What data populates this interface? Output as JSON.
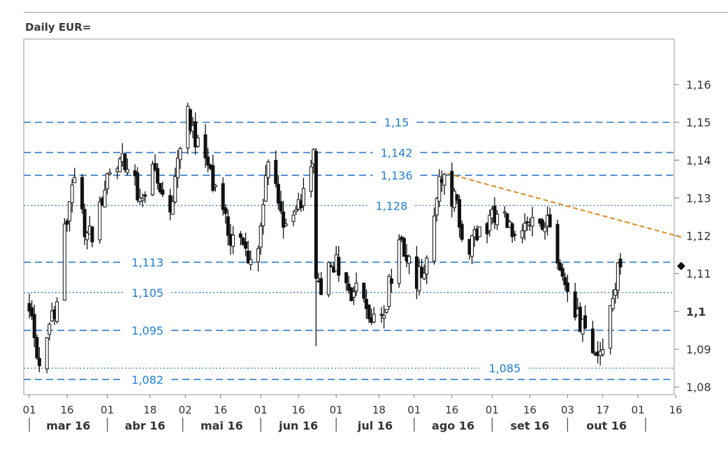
{
  "title": "Daily EUR=",
  "chart_data": {
    "type": "candlestick",
    "title": "Daily EUR=",
    "ylim": [
      1.078,
      1.172
    ],
    "y_ticks": [
      {
        "value": 1.16,
        "label": "1,16",
        "bold": false
      },
      {
        "value": 1.15,
        "label": "1,15",
        "bold": false
      },
      {
        "value": 1.14,
        "label": "1,14",
        "bold": false
      },
      {
        "value": 1.13,
        "label": "1,13",
        "bold": false
      },
      {
        "value": 1.12,
        "label": "1,12",
        "bold": false
      },
      {
        "value": 1.11,
        "label": "1,11",
        "bold": false
      },
      {
        "value": 1.1,
        "label": "1,1",
        "bold": true
      },
      {
        "value": 1.09,
        "label": "1,09",
        "bold": false
      },
      {
        "value": 1.08,
        "label": "1,08",
        "bold": false
      }
    ],
    "x_ticks": [
      {
        "day": 0,
        "label": "01"
      },
      {
        "day": 15,
        "label": "16"
      },
      {
        "day": 31,
        "label": "01"
      },
      {
        "day": 48,
        "label": "18"
      },
      {
        "day": 62,
        "label": "02"
      },
      {
        "day": 76,
        "label": "16"
      },
      {
        "day": 92,
        "label": "01"
      },
      {
        "day": 107,
        "label": "16"
      },
      {
        "day": 122,
        "label": "01"
      },
      {
        "day": 139,
        "label": "18"
      },
      {
        "day": 153,
        "label": "01"
      },
      {
        "day": 168,
        "label": "16"
      },
      {
        "day": 184,
        "label": "01"
      },
      {
        "day": 199,
        "label": "16"
      },
      {
        "day": 214,
        "label": "03"
      },
      {
        "day": 228,
        "label": "17"
      },
      {
        "day": 242,
        "label": "01"
      },
      {
        "day": 257,
        "label": "16"
      }
    ],
    "months": [
      {
        "label": "mar 16",
        "start": 0,
        "end": 31
      },
      {
        "label": "abr 16",
        "start": 31,
        "end": 61
      },
      {
        "label": "mai 16",
        "start": 61,
        "end": 92
      },
      {
        "label": "jun 16",
        "start": 92,
        "end": 122
      },
      {
        "label": "jul 16",
        "start": 122,
        "end": 153
      },
      {
        "label": "ago 16",
        "start": 153,
        "end": 184
      },
      {
        "label": "set 16",
        "start": 184,
        "end": 214
      },
      {
        "label": "out 16",
        "start": 214,
        "end": 245
      }
    ],
    "levels": [
      {
        "value": 1.15,
        "label": "1,15",
        "style": "dashed",
        "label_day": 146
      },
      {
        "value": 1.142,
        "label": "1,142",
        "style": "dashed",
        "label_day": 146
      },
      {
        "value": 1.136,
        "label": "1,136",
        "style": "dashed",
        "label_day": 146
      },
      {
        "value": 1.128,
        "label": "1,128",
        "style": "dotted",
        "label_day": 144
      },
      {
        "value": 1.113,
        "label": "1,113",
        "style": "dashed",
        "label_day": 47
      },
      {
        "value": 1.105,
        "label": "1,105",
        "style": "dotted",
        "label_day": 47
      },
      {
        "value": 1.095,
        "label": "1,095",
        "style": "dashed",
        "label_day": 47
      },
      {
        "value": 1.085,
        "label": "1,085",
        "style": "dotted",
        "label_day": 189
      },
      {
        "value": 1.082,
        "label": "1,082",
        "style": "dashed",
        "label_day": 47
      }
    ],
    "trendline": {
      "start": {
        "day": 166,
        "value": 1.1365
      },
      "end": {
        "day": 260,
        "value": 1.1195
      },
      "color": "#e08a1e"
    },
    "last_value": 1.112,
    "anchors": [
      [
        0,
        1.102
      ],
      [
        3,
        1.088
      ],
      [
        5,
        1.086
      ],
      [
        7,
        1.093
      ],
      [
        9,
        1.1
      ],
      [
        11,
        1.102
      ],
      [
        13,
        1.118
      ],
      [
        15,
        1.124
      ],
      [
        17,
        1.135
      ],
      [
        19,
        1.13
      ],
      [
        21,
        1.125
      ],
      [
        23,
        1.12
      ],
      [
        25,
        1.12
      ],
      [
        27,
        1.123
      ],
      [
        29,
        1.13
      ],
      [
        31,
        1.136
      ],
      [
        33,
        1.139
      ],
      [
        35,
        1.14
      ],
      [
        37,
        1.139
      ],
      [
        39,
        1.139
      ],
      [
        41,
        1.138
      ],
      [
        43,
        1.132
      ],
      [
        45,
        1.128
      ],
      [
        47,
        1.13
      ],
      [
        49,
        1.136
      ],
      [
        51,
        1.134
      ],
      [
        53,
        1.131
      ],
      [
        55,
        1.125
      ],
      [
        57,
        1.13
      ],
      [
        59,
        1.14
      ],
      [
        61,
        1.146
      ],
      [
        62,
        1.153
      ],
      [
        64,
        1.15
      ],
      [
        66,
        1.146
      ],
      [
        68,
        1.14
      ],
      [
        70,
        1.14
      ],
      [
        72,
        1.138
      ],
      [
        74,
        1.132
      ],
      [
        76,
        1.127
      ],
      [
        78,
        1.123
      ],
      [
        80,
        1.12
      ],
      [
        82,
        1.12
      ],
      [
        84,
        1.118
      ],
      [
        86,
        1.116
      ],
      [
        88,
        1.114
      ],
      [
        90,
        1.116
      ],
      [
        92,
        1.12
      ],
      [
        94,
        1.135
      ],
      [
        96,
        1.14
      ],
      [
        98,
        1.134
      ],
      [
        100,
        1.126
      ],
      [
        102,
        1.124
      ],
      [
        104,
        1.12
      ],
      [
        106,
        1.126
      ],
      [
        108,
        1.13
      ],
      [
        110,
        1.133
      ],
      [
        112,
        1.138
      ],
      [
        113,
        1.142
      ],
      [
        114,
        1.108
      ],
      [
        116,
        1.102
      ],
      [
        118,
        1.108
      ],
      [
        120,
        1.113
      ],
      [
        122,
        1.112
      ],
      [
        124,
        1.106
      ],
      [
        126,
        1.106
      ],
      [
        128,
        1.104
      ],
      [
        130,
        1.11
      ],
      [
        132,
        1.106
      ],
      [
        134,
        1.102
      ],
      [
        136,
        1.1
      ],
      [
        138,
        1.098
      ],
      [
        140,
        1.1
      ],
      [
        142,
        1.103
      ],
      [
        144,
        1.11
      ],
      [
        146,
        1.118
      ],
      [
        148,
        1.12
      ],
      [
        150,
        1.114
      ],
      [
        152,
        1.11
      ],
      [
        154,
        1.108
      ],
      [
        156,
        1.11
      ],
      [
        158,
        1.114
      ],
      [
        160,
        1.12
      ],
      [
        162,
        1.132
      ],
      [
        164,
        1.136
      ],
      [
        166,
        1.136
      ],
      [
        168,
        1.13
      ],
      [
        170,
        1.128
      ],
      [
        172,
        1.121
      ],
      [
        174,
        1.117
      ],
      [
        176,
        1.118
      ],
      [
        178,
        1.12
      ],
      [
        180,
        1.125
      ],
      [
        182,
        1.122
      ],
      [
        184,
        1.126
      ],
      [
        186,
        1.124
      ],
      [
        188,
        1.125
      ],
      [
        190,
        1.125
      ],
      [
        192,
        1.119
      ],
      [
        194,
        1.116
      ],
      [
        196,
        1.12
      ],
      [
        198,
        1.123
      ],
      [
        200,
        1.124
      ],
      [
        202,
        1.12
      ],
      [
        204,
        1.124
      ],
      [
        206,
        1.123
      ],
      [
        208,
        1.12
      ],
      [
        210,
        1.115
      ],
      [
        212,
        1.112
      ],
      [
        214,
        1.105
      ],
      [
        216,
        1.1
      ],
      [
        218,
        1.098
      ],
      [
        220,
        1.096
      ],
      [
        222,
        1.092
      ],
      [
        224,
        1.087
      ],
      [
        226,
        1.089
      ],
      [
        228,
        1.09
      ],
      [
        230,
        1.098
      ],
      [
        232,
        1.104
      ],
      [
        234,
        1.111
      ],
      [
        236,
        1.112
      ]
    ]
  }
}
